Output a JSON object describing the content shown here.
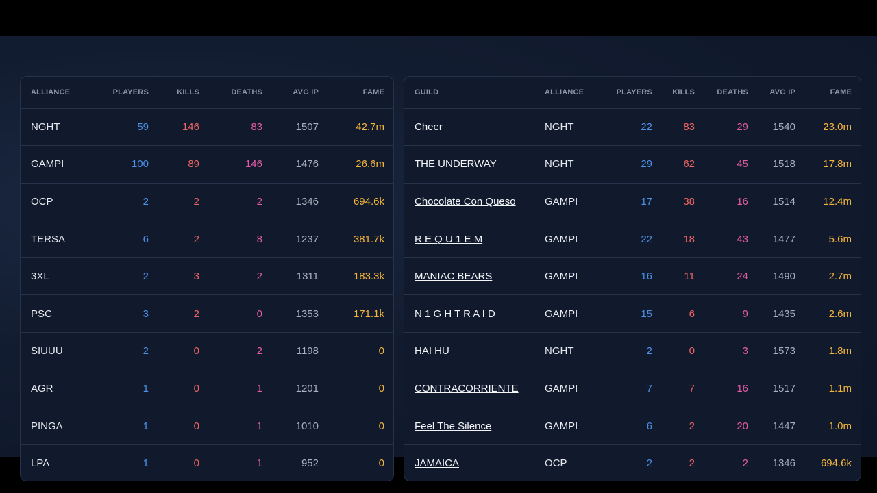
{
  "alliance_table": {
    "headers": [
      "ALLIANCE",
      "PLAYERS",
      "KILLS",
      "DEATHS",
      "AVG IP",
      "FAME"
    ],
    "rows": [
      {
        "alliance": "NGHT",
        "players": "59",
        "kills": "146",
        "deaths": "83",
        "avg_ip": "1507",
        "fame": "42.7m"
      },
      {
        "alliance": "GAMPI",
        "players": "100",
        "kills": "89",
        "deaths": "146",
        "avg_ip": "1476",
        "fame": "26.6m"
      },
      {
        "alliance": "OCP",
        "players": "2",
        "kills": "2",
        "deaths": "2",
        "avg_ip": "1346",
        "fame": "694.6k"
      },
      {
        "alliance": "TERSA",
        "players": "6",
        "kills": "2",
        "deaths": "8",
        "avg_ip": "1237",
        "fame": "381.7k"
      },
      {
        "alliance": "3XL",
        "players": "2",
        "kills": "3",
        "deaths": "2",
        "avg_ip": "1311",
        "fame": "183.3k"
      },
      {
        "alliance": "PSC",
        "players": "3",
        "kills": "2",
        "deaths": "0",
        "avg_ip": "1353",
        "fame": "171.1k"
      },
      {
        "alliance": "SIUUU",
        "players": "2",
        "kills": "0",
        "deaths": "2",
        "avg_ip": "1198",
        "fame": "0"
      },
      {
        "alliance": "AGR",
        "players": "1",
        "kills": "0",
        "deaths": "1",
        "avg_ip": "1201",
        "fame": "0"
      },
      {
        "alliance": "PINGA",
        "players": "1",
        "kills": "0",
        "deaths": "1",
        "avg_ip": "1010",
        "fame": "0"
      },
      {
        "alliance": "LPA",
        "players": "1",
        "kills": "0",
        "deaths": "1",
        "avg_ip": "952",
        "fame": "0"
      }
    ]
  },
  "guild_table": {
    "headers": [
      "GUILD",
      "ALLIANCE",
      "PLAYERS",
      "KILLS",
      "DEATHS",
      "AVG IP",
      "FAME"
    ],
    "rows": [
      {
        "guild": "Cheer",
        "alliance": "NGHT",
        "players": "22",
        "kills": "83",
        "deaths": "29",
        "avg_ip": "1540",
        "fame": "23.0m"
      },
      {
        "guild": "THE UNDERWAY",
        "alliance": "NGHT",
        "players": "29",
        "kills": "62",
        "deaths": "45",
        "avg_ip": "1518",
        "fame": "17.8m"
      },
      {
        "guild": "Chocolate Con Queso",
        "alliance": "GAMPI",
        "players": "17",
        "kills": "38",
        "deaths": "16",
        "avg_ip": "1514",
        "fame": "12.4m"
      },
      {
        "guild": "R E Q U 1 E M",
        "alliance": "GAMPI",
        "players": "22",
        "kills": "18",
        "deaths": "43",
        "avg_ip": "1477",
        "fame": "5.6m"
      },
      {
        "guild": "MANIAC BEARS",
        "alliance": "GAMPI",
        "players": "16",
        "kills": "11",
        "deaths": "24",
        "avg_ip": "1490",
        "fame": "2.7m"
      },
      {
        "guild": "N 1 G H T R A I D",
        "alliance": "GAMPI",
        "players": "15",
        "kills": "6",
        "deaths": "9",
        "avg_ip": "1435",
        "fame": "2.6m"
      },
      {
        "guild": "HAI HU",
        "alliance": "NGHT",
        "players": "2",
        "kills": "0",
        "deaths": "3",
        "avg_ip": "1573",
        "fame": "1.8m"
      },
      {
        "guild": "CONTRACORRIENTE",
        "alliance": "GAMPI",
        "players": "7",
        "kills": "7",
        "deaths": "16",
        "avg_ip": "1517",
        "fame": "1.1m"
      },
      {
        "guild": "Feel The Silence",
        "alliance": "GAMPI",
        "players": "6",
        "kills": "2",
        "deaths": "20",
        "avg_ip": "1447",
        "fame": "1.0m"
      },
      {
        "guild": "JAMAICA",
        "alliance": "OCP",
        "players": "2",
        "kills": "2",
        "deaths": "2",
        "avg_ip": "1346",
        "fame": "694.6k"
      }
    ]
  },
  "colors": {
    "players": "#4d90e8",
    "kills": "#ef6464",
    "deaths": "#e25ba6",
    "fame": "#f5b53a"
  }
}
